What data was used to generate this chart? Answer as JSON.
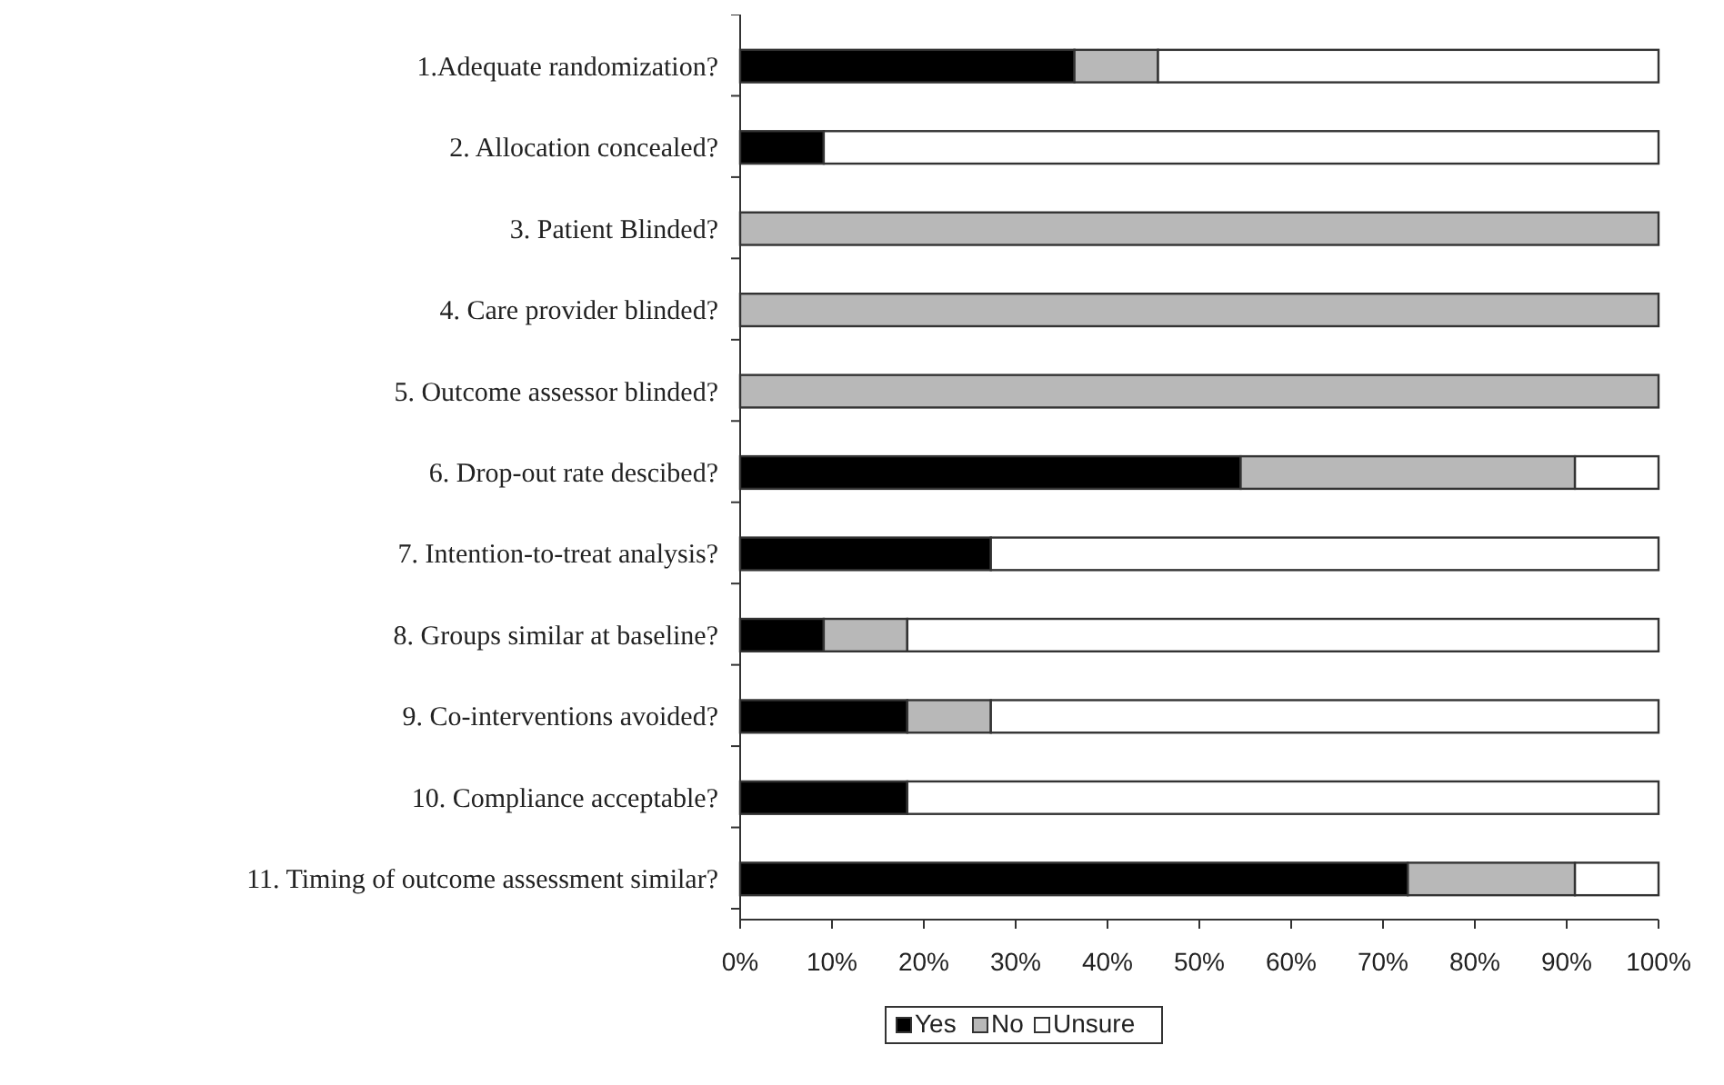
{
  "chart_data": {
    "type": "bar",
    "orientation": "horizontal",
    "stacked": true,
    "categories": [
      "1.Adequate randomization?",
      "2. Allocation concealed?",
      "3. Patient Blinded?",
      "4. Care provider blinded?",
      "5. Outcome assessor blinded?",
      "6. Drop-out rate descibed?",
      "7. Intention-to-treat analysis?",
      "8. Groups similar at baseline?",
      "9. Co-interventions avoided?",
      "10. Compliance acceptable?",
      "11. Timing of outcome assessment similar?"
    ],
    "series": [
      {
        "name": "Yes",
        "color": "#000000",
        "values": [
          36.4,
          9.1,
          0,
          0,
          0,
          54.5,
          27.3,
          9.1,
          18.2,
          18.2,
          72.7
        ]
      },
      {
        "name": "No",
        "color": "#b8b8b8",
        "values": [
          9.1,
          0,
          100,
          100,
          100,
          36.4,
          0,
          9.1,
          9.1,
          0,
          18.2
        ]
      },
      {
        "name": "Unsure",
        "color": "#ffffff",
        "values": [
          54.5,
          90.9,
          0,
          0,
          0,
          9.1,
          72.7,
          81.8,
          72.7,
          81.8,
          9.1
        ]
      }
    ],
    "xlim": [
      0,
      100
    ],
    "xticks": [
      {
        "value": 0,
        "label": "0%"
      },
      {
        "value": 10,
        "label": "10%"
      },
      {
        "value": 20,
        "label": "20%"
      },
      {
        "value": 30,
        "label": "30%"
      },
      {
        "value": 40,
        "label": "40%"
      },
      {
        "value": 50,
        "label": "50%"
      },
      {
        "value": 60,
        "label": "60%"
      },
      {
        "value": 70,
        "label": "70%"
      },
      {
        "value": 80,
        "label": "80%"
      },
      {
        "value": 90,
        "label": "90%"
      },
      {
        "value": 100,
        "label": "100%"
      }
    ],
    "legend": "bottom",
    "grid": false
  }
}
